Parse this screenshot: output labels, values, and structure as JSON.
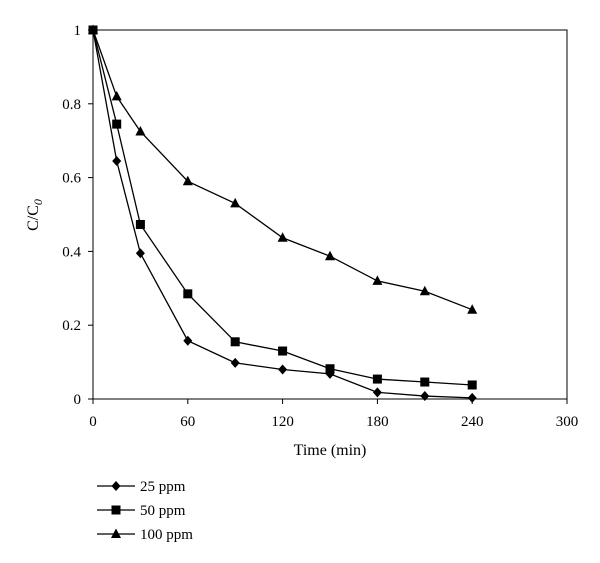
{
  "chart_data": {
    "type": "line",
    "xlabel": "Time (min)",
    "ylabel": {
      "main": "C/C",
      "sub": "0"
    },
    "xlim": [
      0,
      300
    ],
    "ylim": [
      0,
      1
    ],
    "xticks": [
      "0",
      "60",
      "120",
      "180",
      "240",
      "300"
    ],
    "yticks": [
      "0",
      "0.2",
      "0.4",
      "0.6",
      "0.8",
      "1"
    ],
    "grid": false,
    "legend_position": "bottom-left",
    "series": [
      {
        "name": "25 ppm",
        "marker": "diamond",
        "x": [
          0,
          15,
          30,
          60,
          90,
          120,
          150,
          180,
          210,
          240
        ],
        "y": [
          1.0,
          0.645,
          0.395,
          0.158,
          0.098,
          0.08,
          0.068,
          0.018,
          0.008,
          0.003
        ]
      },
      {
        "name": "50 ppm",
        "marker": "square",
        "x": [
          0,
          15,
          30,
          60,
          90,
          120,
          150,
          180,
          210,
          240
        ],
        "y": [
          1.0,
          0.745,
          0.473,
          0.285,
          0.155,
          0.13,
          0.082,
          0.054,
          0.046,
          0.038
        ]
      },
      {
        "name": "100 ppm",
        "marker": "triangle",
        "x": [
          0,
          15,
          30,
          60,
          90,
          120,
          150,
          180,
          210,
          240
        ],
        "y": [
          1.0,
          0.82,
          0.725,
          0.59,
          0.53,
          0.437,
          0.387,
          0.32,
          0.292,
          0.242
        ]
      }
    ]
  }
}
